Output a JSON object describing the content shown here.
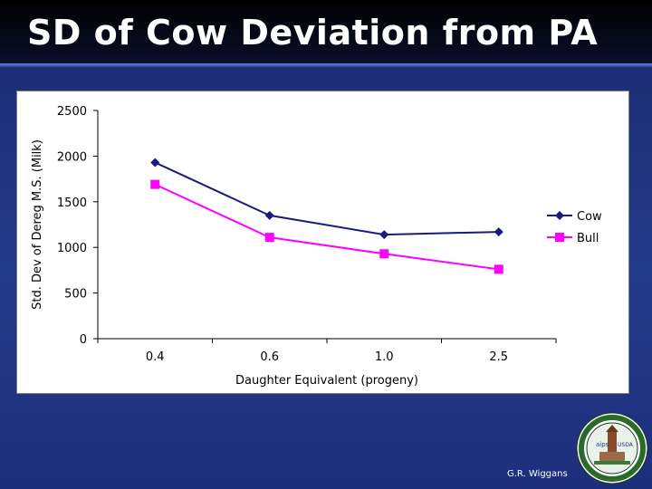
{
  "slide": {
    "title": "SD of Cow Deviation from PA",
    "credit": "G.R. Wiggans"
  },
  "colors": {
    "cow": "#1a1a80",
    "bull": "#ff00ff",
    "background": "#223a8a"
  },
  "seal": {
    "icon": "usda-research-seal-icon",
    "left_label": "aips",
    "right_label": "USDA"
  },
  "chart_data": {
    "type": "line",
    "categories": [
      "0.4",
      "0.6",
      "1.0",
      "2.5"
    ],
    "series": [
      {
        "name": "Cow",
        "values": [
          1930,
          1350,
          1140,
          1170
        ],
        "marker": "diamond"
      },
      {
        "name": "Bull",
        "values": [
          1690,
          1110,
          930,
          760
        ],
        "marker": "square"
      }
    ],
    "xlabel": "Daughter Equivalent (progeny)",
    "ylabel": "Std. Dev of Dereg M.S. (Milk)",
    "ylim": [
      0,
      2500
    ],
    "yticks": [
      0,
      500,
      1000,
      1500,
      2000,
      2500
    ],
    "grid": false,
    "legend": "right"
  }
}
